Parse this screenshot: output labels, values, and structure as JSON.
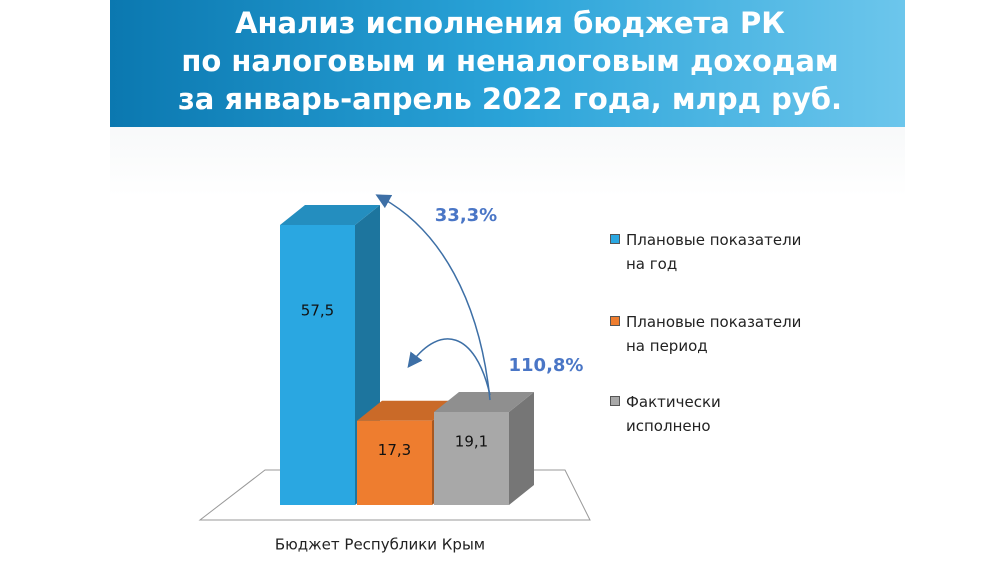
{
  "chart_data": {
    "type": "bar3d",
    "title": [
      "Анализ исполнения бюджета РК",
      "по налоговым и неналоговым доходам",
      "за январь-апрель 2022 года, млрд руб."
    ],
    "categories": [
      "Бюджет Республики Крым"
    ],
    "series": [
      {
        "name": "Плановые показатели на год",
        "color": "#2aa7e1",
        "values": [
          57.5
        ],
        "value_labels": [
          "57,5"
        ]
      },
      {
        "name": "Плановые показатели на период",
        "color": "#ee7d2f",
        "values": [
          17.3
        ],
        "value_labels": [
          "17,3"
        ]
      },
      {
        "name": "Фактически исполнено",
        "color": "#a8a8a8",
        "values": [
          19.1
        ],
        "value_labels": [
          "19,1"
        ]
      }
    ],
    "annotations": [
      "33,3%",
      "110,8%"
    ]
  }
}
